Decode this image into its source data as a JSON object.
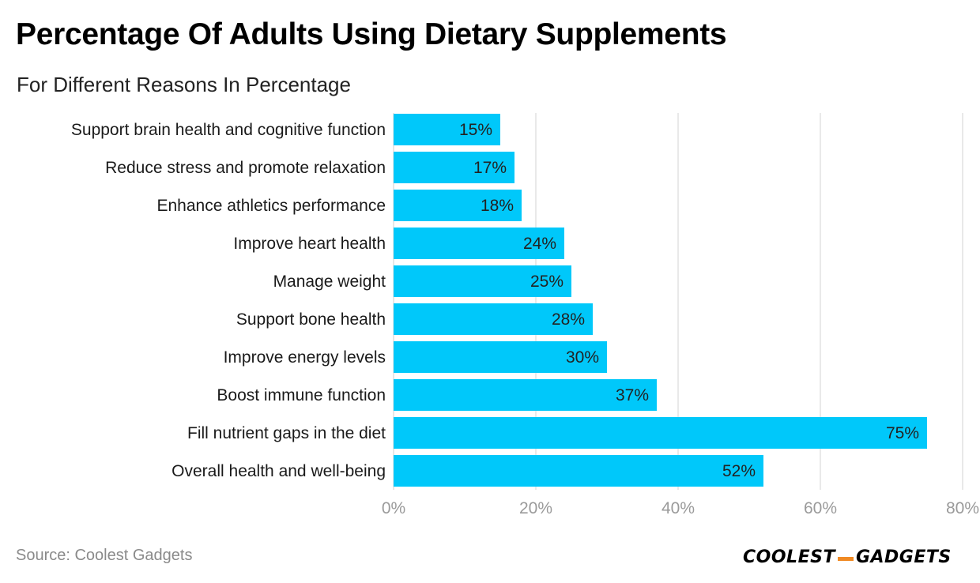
{
  "title": "Percentage Of Adults Using Dietary Supplements",
  "subtitle": "For Different Reasons In Percentage",
  "source": "Source: Coolest Gadgets",
  "brand": {
    "part1": "COOLEST",
    "part2": "GADGETS"
  },
  "colors": {
    "bar": "#00c8fa",
    "grid": "#e2e2e2",
    "tick_label": "#9a9a9a",
    "category_label": "#1a1a1a",
    "bar_label": "#222222",
    "brand_dash": "#f08a24"
  },
  "chart_data": {
    "type": "bar",
    "orientation": "horizontal",
    "title": "Percentage Of Adults Using Dietary Supplements",
    "subtitle": "For Different Reasons In Percentage",
    "xlabel": "",
    "ylabel": "",
    "xlim": [
      0,
      80
    ],
    "xticks": [
      0,
      20,
      40,
      60,
      80
    ],
    "xtick_labels": [
      "0%",
      "20%",
      "40%",
      "60%",
      "80%"
    ],
    "grid": true,
    "categories": [
      "Support brain health and cognitive function",
      "Reduce stress and promote relaxation",
      "Enhance athletics performance",
      "Improve heart health",
      "Manage weight",
      "Support bone health",
      "Improve energy levels",
      "Boost immune function",
      "Fill nutrient gaps in the diet",
      "Overall health and well-being"
    ],
    "values": [
      15,
      17,
      18,
      24,
      25,
      28,
      30,
      37,
      75,
      52
    ],
    "value_labels": [
      "15%",
      "17%",
      "18%",
      "24%",
      "25%",
      "28%",
      "30%",
      "37%",
      "75%",
      "52%"
    ]
  }
}
